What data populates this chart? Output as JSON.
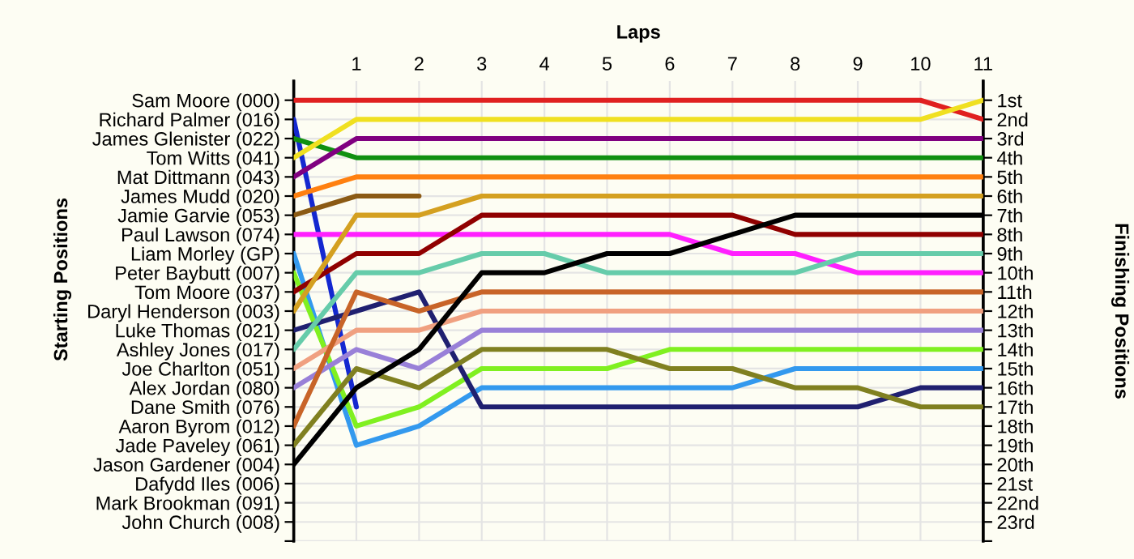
{
  "chart_data": {
    "type": "line",
    "xlabel": "Laps",
    "y2label": "Finishing Positions",
    "annotations": [
      "Starting Positions"
    ],
    "x": [
      0,
      1,
      2,
      3,
      4,
      5,
      6,
      7,
      8,
      9,
      10,
      11
    ],
    "xlim": [
      0,
      11
    ],
    "xticks": [
      1,
      2,
      3,
      4,
      5,
      6,
      7,
      8,
      9,
      10,
      11
    ],
    "y_categories": [
      "Sam Moore (000)",
      "Richard Palmer (016)",
      "James Glenister (022)",
      "Tom Witts (041)",
      "Mat Dittmann (043)",
      "James Mudd (020)",
      "Jamie Garvie (053)",
      "Paul Lawson (074)",
      "Liam Morley (GP)",
      "Peter Baybutt (007)",
      "Tom Moore (037)",
      "Daryl Henderson (003)",
      "Luke Thomas (021)",
      "Ashley Jones (017)",
      "Joe Charlton (051)",
      "Alex Jordan (080)",
      "Dane Smith (076)",
      "Aaron Byrom (012)",
      "Jade Paveley (061)",
      "Jason Gardener (004)",
      "Dafydd Iles (006)",
      "Mark Brookman (091)",
      "John Church (008)",
      null
    ],
    "y2lim": [
      24,
      0
    ],
    "y2ticks": [
      {
        "value": 1,
        "label": "1st"
      },
      {
        "value": 2,
        "label": "2nd"
      },
      {
        "value": 3,
        "label": "3rd"
      },
      {
        "value": 4,
        "label": "4th"
      },
      {
        "value": 5,
        "label": "5th"
      },
      {
        "value": 6,
        "label": "6th"
      },
      {
        "value": 7,
        "label": "7th"
      },
      {
        "value": 8,
        "label": "8th"
      },
      {
        "value": 9,
        "label": "9th"
      },
      {
        "value": 10,
        "label": "10th"
      },
      {
        "value": 11,
        "label": "11th"
      },
      {
        "value": 12,
        "label": "12th"
      },
      {
        "value": 13,
        "label": "13th"
      },
      {
        "value": 14,
        "label": "14th"
      },
      {
        "value": 15,
        "label": "15th"
      },
      {
        "value": 16,
        "label": "16th"
      },
      {
        "value": 17,
        "label": "17th"
      },
      {
        "value": 18,
        "label": "18th"
      },
      {
        "value": 19,
        "label": "19th"
      },
      {
        "value": 20,
        "label": "20th"
      },
      {
        "value": 21,
        "label": "21st"
      },
      {
        "value": 22,
        "label": "22nd"
      },
      {
        "value": 23,
        "label": "23rd"
      },
      {
        "value": 24,
        "label": null
      }
    ],
    "grid": true,
    "line_style": "solid",
    "series": [
      {
        "axis": "y2",
        "color": "#e02020",
        "values": [
          1,
          1,
          1,
          1,
          1,
          1,
          1,
          1,
          1,
          1,
          1,
          2
        ]
      },
      {
        "axis": "y2",
        "color": "#1428d0",
        "values": [
          2,
          17,
          null,
          null,
          null,
          null,
          null,
          null,
          null,
          null,
          null,
          null
        ]
      },
      {
        "axis": "y2",
        "color": "#109010",
        "values": [
          3,
          4,
          4,
          4,
          4,
          4,
          4,
          4,
          4,
          4,
          4,
          4
        ]
      },
      {
        "axis": "y2",
        "color": "#f0e020",
        "values": [
          4,
          2,
          2,
          2,
          2,
          2,
          2,
          2,
          2,
          2,
          2,
          1
        ]
      },
      {
        "axis": "y2",
        "color": "#800080",
        "values": [
          5,
          3,
          3,
          3,
          3,
          3,
          3,
          3,
          3,
          3,
          3,
          3
        ]
      },
      {
        "axis": "y2",
        "color": "#ff8010",
        "values": [
          6,
          5,
          5,
          5,
          5,
          5,
          5,
          5,
          5,
          5,
          5,
          5
        ]
      },
      {
        "axis": "y2",
        "color": "#8b5a14",
        "values": [
          7,
          6,
          6,
          null,
          null,
          null,
          null,
          null,
          null,
          null,
          null,
          null
        ]
      },
      {
        "axis": "y2",
        "color": "#ff20ff",
        "values": [
          8,
          8,
          8,
          8,
          8,
          8,
          8,
          9,
          9,
          10,
          10,
          10
        ]
      },
      {
        "axis": "y2",
        "color": "#3399ee",
        "values": [
          9,
          19,
          18,
          16,
          16,
          16,
          16,
          16,
          15,
          15,
          15,
          15
        ]
      },
      {
        "axis": "y2",
        "color": "#80f020",
        "values": [
          10,
          18,
          17,
          15,
          15,
          15,
          14,
          14,
          14,
          14,
          14,
          14
        ]
      },
      {
        "axis": "y2",
        "color": "#900000",
        "values": [
          11,
          9,
          9,
          7,
          7,
          7,
          7,
          7,
          8,
          8,
          8,
          8
        ]
      },
      {
        "axis": "y2",
        "color": "#d4a020",
        "values": [
          12,
          7,
          7,
          6,
          6,
          6,
          6,
          6,
          6,
          6,
          6,
          6
        ]
      },
      {
        "axis": "y2",
        "color": "#202070",
        "values": [
          13,
          12,
          11,
          17,
          17,
          17,
          17,
          17,
          17,
          17,
          16,
          16
        ]
      },
      {
        "axis": "y2",
        "color": "#66ccaa",
        "values": [
          14,
          10,
          10,
          9,
          9,
          10,
          10,
          10,
          10,
          9,
          9,
          9
        ]
      },
      {
        "axis": "y2",
        "color": "#f0a080",
        "values": [
          15,
          13,
          13,
          12,
          12,
          12,
          12,
          12,
          12,
          12,
          12,
          12
        ]
      },
      {
        "axis": "y2",
        "color": "#9980d8",
        "values": [
          16,
          14,
          15,
          13,
          13,
          13,
          13,
          13,
          13,
          13,
          13,
          13
        ]
      },
      {
        "axis": "y2",
        "color": "#c86428",
        "values": [
          18,
          11,
          12,
          11,
          11,
          11,
          11,
          11,
          11,
          11,
          11,
          11
        ]
      },
      {
        "axis": "y2",
        "color": "#808020",
        "values": [
          19,
          15,
          16,
          14,
          14,
          14,
          15,
          15,
          16,
          16,
          17,
          17
        ]
      },
      {
        "axis": "y2",
        "color": "#000000",
        "values": [
          20,
          16,
          14,
          10,
          10,
          9,
          9,
          8,
          7,
          7,
          7,
          7
        ]
      }
    ]
  }
}
